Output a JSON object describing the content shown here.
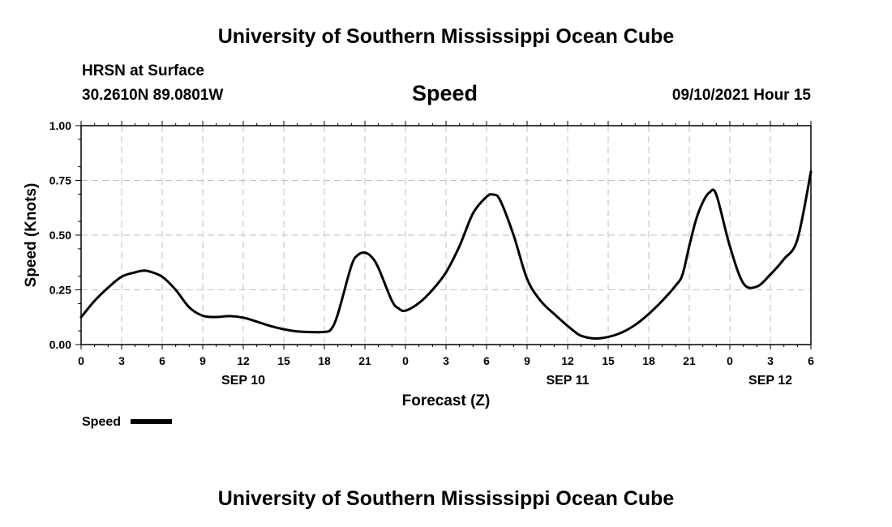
{
  "header": {
    "title_top": "University of Southern Mississippi Ocean Cube",
    "station": "HRSN at Surface",
    "coords": "30.2610N  89.0801W",
    "chart_title": "Speed",
    "timestamp": "09/10/2021 Hour 15"
  },
  "footer": {
    "title_bottom": "University of Southern Mississippi Ocean Cube"
  },
  "colors": {
    "line": "#000000",
    "grid": "#c0c0c0"
  },
  "chart_data": {
    "type": "line",
    "title": "Speed",
    "xlabel": "Forecast (Z)",
    "ylabel": "Speed (Knots)",
    "ylim": [
      0,
      1.0
    ],
    "xlim_hours": [
      0,
      54
    ],
    "y_ticks": [
      "0.00",
      "0.25",
      "0.50",
      "0.75",
      "1.00"
    ],
    "y_tick_values": [
      0,
      0.25,
      0.5,
      0.75,
      1.0
    ],
    "x_tick_hours": [
      0,
      3,
      6,
      9,
      12,
      15,
      18,
      21,
      24,
      27,
      30,
      33,
      36,
      39,
      42,
      45,
      48,
      51,
      54
    ],
    "x_tick_labels": [
      "0",
      "3",
      "6",
      "9",
      "12",
      "15",
      "18",
      "21",
      "0",
      "3",
      "6",
      "9",
      "12",
      "15",
      "18",
      "21",
      "0",
      "3",
      "6"
    ],
    "date_labels": [
      {
        "hour": 12,
        "label": "SEP 10"
      },
      {
        "hour": 36,
        "label": "SEP 11"
      },
      {
        "hour": 51,
        "label": "SEP 12"
      }
    ],
    "grid": true,
    "legend": {
      "position": "bottom-left",
      "entries": [
        "Speed"
      ]
    },
    "series": [
      {
        "name": "Speed",
        "x": [
          0,
          1,
          2,
          3,
          4,
          4.5,
          5,
          6,
          7,
          8,
          9,
          10,
          11,
          12,
          13,
          14,
          15,
          16,
          17,
          18,
          18.5,
          19,
          20,
          20.5,
          21,
          21.5,
          22,
          23,
          23.5,
          24,
          25,
          26,
          27,
          28,
          29,
          30,
          30.5,
          31,
          32,
          33,
          34,
          35,
          36,
          36.5,
          37,
          38,
          39,
          40,
          41,
          42,
          43,
          44,
          44.5,
          45,
          45.5,
          46,
          46.5,
          47,
          48,
          49,
          50,
          51,
          52,
          53,
          54
        ],
        "values": [
          0.125,
          0.2,
          0.26,
          0.31,
          0.33,
          0.337,
          0.335,
          0.31,
          0.25,
          0.17,
          0.132,
          0.126,
          0.13,
          0.123,
          0.105,
          0.085,
          0.07,
          0.06,
          0.057,
          0.058,
          0.07,
          0.14,
          0.36,
          0.41,
          0.42,
          0.4,
          0.35,
          0.2,
          0.165,
          0.155,
          0.19,
          0.25,
          0.33,
          0.45,
          0.6,
          0.675,
          0.685,
          0.66,
          0.5,
          0.3,
          0.2,
          0.14,
          0.085,
          0.06,
          0.04,
          0.028,
          0.035,
          0.055,
          0.09,
          0.14,
          0.2,
          0.27,
          0.32,
          0.45,
          0.57,
          0.65,
          0.695,
          0.685,
          0.45,
          0.28,
          0.265,
          0.32,
          0.39,
          0.48,
          0.79
        ]
      }
    ]
  }
}
